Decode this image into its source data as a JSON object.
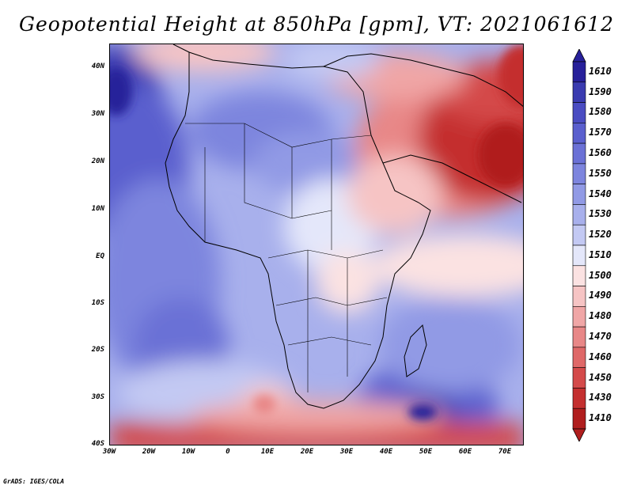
{
  "title": "Geopotential Height at 850hPa [gpm], VT: 2021061612",
  "footer": "GrADS: IGES/COLA",
  "map": {
    "region": "Africa and surrounding oceans",
    "lat_labels": [
      "40N",
      "30N",
      "20N",
      "10N",
      "EQ",
      "10S",
      "20S",
      "30S",
      "40S"
    ],
    "lon_labels": [
      "30W",
      "20W",
      "10W",
      "0",
      "10E",
      "20E",
      "30E",
      "40E",
      "50E",
      "60E",
      "70E"
    ],
    "lat_range": [
      -40,
      44
    ],
    "lon_range": [
      -30,
      77
    ]
  },
  "colorbar": {
    "units": "gpm",
    "levels": [
      "1610",
      "1590",
      "1580",
      "1570",
      "1560",
      "1550",
      "1540",
      "1530",
      "1520",
      "1510",
      "1500",
      "1490",
      "1480",
      "1470",
      "1460",
      "1450",
      "1430",
      "1410"
    ],
    "colors": [
      "#27209a",
      "#3a3bb0",
      "#4a4cc2",
      "#5a5fce",
      "#6b71d6",
      "#7d85de",
      "#919ae5",
      "#a8b0ec",
      "#c3c9f3",
      "#e4e7fa",
      "#fbe2e2",
      "#f6c4c4",
      "#f0a6a6",
      "#e88787",
      "#df6868",
      "#d44a4a",
      "#c42f2f",
      "#b01e1e"
    ]
  },
  "colors": {
    "high": "#27209a",
    "low": "#b01e1e",
    "neutral": "#ffffff"
  }
}
